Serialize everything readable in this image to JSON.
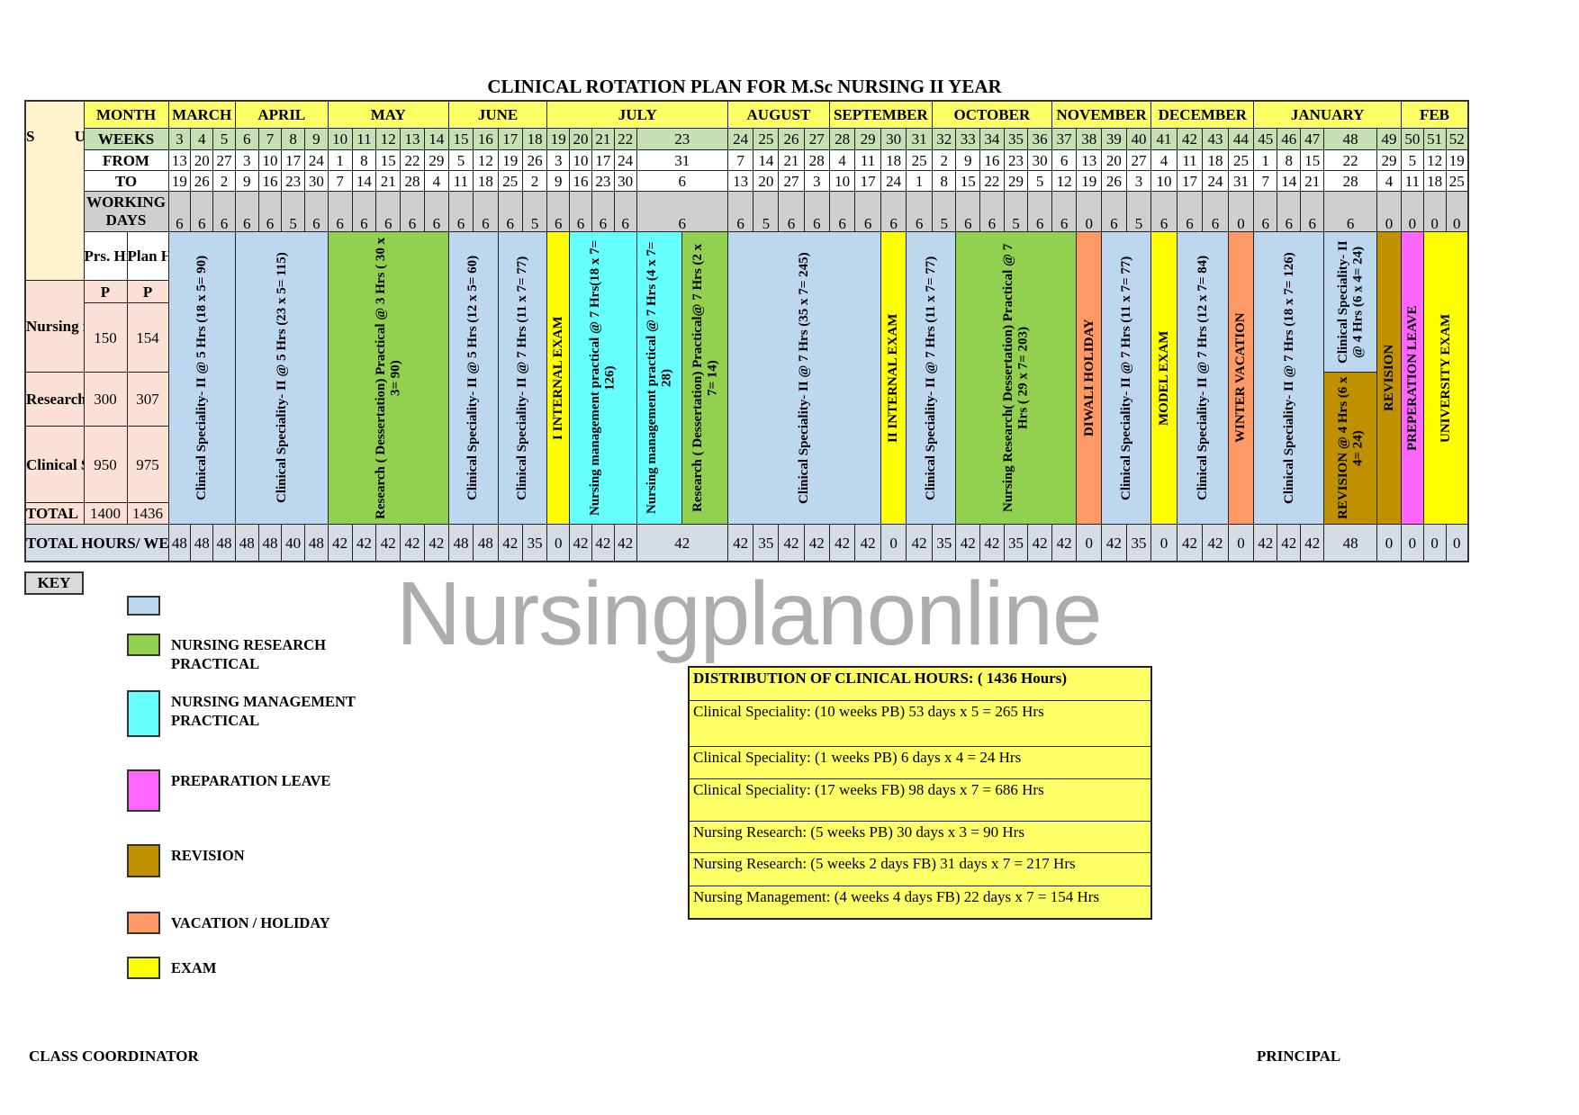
{
  "title": "CLINICAL ROTATION PLAN FOR M.Sc NURSING II YEAR",
  "header_labels": {
    "subject": "S U B J E C T",
    "month": "MONTH",
    "weeks": "WEEKS",
    "from": "FROM",
    "to": "TO",
    "working_days": "WORKING DAYS",
    "prs_hrs": "Prs. Hrs",
    "plan_hrs": "Plan Hrs",
    "prs_unit": "P",
    "plan_unit": "P",
    "total_hours_week": "TOTAL HOURS/ WEEK"
  },
  "months": [
    {
      "label": "MARCH",
      "first_week": 3,
      "last_week": 5
    },
    {
      "label": "APRIL",
      "first_week": 6,
      "last_week": 9
    },
    {
      "label": "MAY",
      "first_week": 10,
      "last_week": 14
    },
    {
      "label": "JUNE",
      "first_week": 15,
      "last_week": 18
    },
    {
      "label": "JULY",
      "first_week": 19,
      "last_week": 23
    },
    {
      "label": "AUGUST",
      "first_week": 24,
      "last_week": 27
    },
    {
      "label": "SEPTEMBER",
      "first_week": 28,
      "last_week": 31
    },
    {
      "label": "OCTOBER",
      "first_week": 32,
      "last_week": 36
    },
    {
      "label": "NOVEMBER",
      "first_week": 37,
      "last_week": 40
    },
    {
      "label": "DECEMBER",
      "first_week": 41,
      "last_week": 44
    },
    {
      "label": "JANUARY",
      "first_week": 45,
      "last_week": 49
    },
    {
      "label": "FEB",
      "first_week": 50,
      "last_week": 52
    }
  ],
  "weeks": [
    {
      "week": "3",
      "from": "13",
      "to": "19",
      "working_days": "6",
      "total_hours": "48"
    },
    {
      "week": "4",
      "from": "20",
      "to": "26",
      "working_days": "6",
      "total_hours": "48"
    },
    {
      "week": "5",
      "from": "27",
      "to": "2",
      "working_days": "6",
      "total_hours": "48"
    },
    {
      "week": "6",
      "from": "3",
      "to": "9",
      "working_days": "6",
      "total_hours": "48"
    },
    {
      "week": "7",
      "from": "10",
      "to": "16",
      "working_days": "6",
      "total_hours": "48"
    },
    {
      "week": "8",
      "from": "17",
      "to": "23",
      "working_days": "5",
      "total_hours": "40"
    },
    {
      "week": "9",
      "from": "24",
      "to": "30",
      "working_days": "6",
      "total_hours": "48"
    },
    {
      "week": "10",
      "from": "1",
      "to": "7",
      "working_days": "6",
      "total_hours": "42"
    },
    {
      "week": "11",
      "from": "8",
      "to": "14",
      "working_days": "6",
      "total_hours": "42"
    },
    {
      "week": "12",
      "from": "15",
      "to": "21",
      "working_days": "6",
      "total_hours": "42"
    },
    {
      "week": "13",
      "from": "22",
      "to": "28",
      "working_days": "6",
      "total_hours": "42"
    },
    {
      "week": "14",
      "from": "29",
      "to": "4",
      "working_days": "6",
      "total_hours": "42"
    },
    {
      "week": "15",
      "from": "5",
      "to": "11",
      "working_days": "6",
      "total_hours": "48"
    },
    {
      "week": "16",
      "from": "12",
      "to": "18",
      "working_days": "6",
      "total_hours": "48"
    },
    {
      "week": "17",
      "from": "19",
      "to": "25",
      "working_days": "6",
      "total_hours": "42"
    },
    {
      "week": "18",
      "from": "26",
      "to": "2",
      "working_days": "5",
      "total_hours": "35"
    },
    {
      "week": "19",
      "from": "3",
      "to": "9",
      "working_days": "6",
      "total_hours": "0"
    },
    {
      "week": "20",
      "from": "10",
      "to": "16",
      "working_days": "6",
      "total_hours": "42"
    },
    {
      "week": "21",
      "from": "17",
      "to": "23",
      "working_days": "6",
      "total_hours": "42"
    },
    {
      "week": "22",
      "from": "24",
      "to": "30",
      "working_days": "6",
      "total_hours": "42"
    },
    {
      "week": "23",
      "from": "31",
      "to": "6",
      "working_days": "6",
      "total_hours": "42"
    },
    {
      "week": "24",
      "from": "7",
      "to": "13",
      "working_days": "6",
      "total_hours": "42"
    },
    {
      "week": "25",
      "from": "14",
      "to": "20",
      "working_days": "5",
      "total_hours": "35"
    },
    {
      "week": "26",
      "from": "21",
      "to": "27",
      "working_days": "6",
      "total_hours": "42"
    },
    {
      "week": "27",
      "from": "28",
      "to": "3",
      "working_days": "6",
      "total_hours": "42"
    },
    {
      "week": "28",
      "from": "4",
      "to": "10",
      "working_days": "6",
      "total_hours": "42"
    },
    {
      "week": "29",
      "from": "11",
      "to": "17",
      "working_days": "6",
      "total_hours": "42"
    },
    {
      "week": "30",
      "from": "18",
      "to": "24",
      "working_days": "6",
      "total_hours": "0"
    },
    {
      "week": "31",
      "from": "25",
      "to": "1",
      "working_days": "6",
      "total_hours": "42"
    },
    {
      "week": "32",
      "from": "2",
      "to": "8",
      "working_days": "5",
      "total_hours": "35"
    },
    {
      "week": "33",
      "from": "9",
      "to": "15",
      "working_days": "6",
      "total_hours": "42"
    },
    {
      "week": "34",
      "from": "16",
      "to": "22",
      "working_days": "6",
      "total_hours": "42"
    },
    {
      "week": "35",
      "from": "23",
      "to": "29",
      "working_days": "5",
      "total_hours": "35"
    },
    {
      "week": "36",
      "from": "30",
      "to": "5",
      "working_days": "6",
      "total_hours": "42"
    },
    {
      "week": "37",
      "from": "6",
      "to": "12",
      "working_days": "6",
      "total_hours": "42"
    },
    {
      "week": "38",
      "from": "13",
      "to": "19",
      "working_days": "0",
      "total_hours": "0"
    },
    {
      "week": "39",
      "from": "20",
      "to": "26",
      "working_days": "6",
      "total_hours": "42"
    },
    {
      "week": "40",
      "from": "27",
      "to": "3",
      "working_days": "5",
      "total_hours": "35"
    },
    {
      "week": "41",
      "from": "4",
      "to": "10",
      "working_days": "6",
      "total_hours": "0"
    },
    {
      "week": "42",
      "from": "11",
      "to": "17",
      "working_days": "6",
      "total_hours": "42"
    },
    {
      "week": "43",
      "from": "18",
      "to": "24",
      "working_days": "6",
      "total_hours": "42"
    },
    {
      "week": "44",
      "from": "25",
      "to": "31",
      "working_days": "0",
      "total_hours": "0"
    },
    {
      "week": "45",
      "from": "1",
      "to": "7",
      "working_days": "6",
      "total_hours": "42"
    },
    {
      "week": "46",
      "from": "8",
      "to": "14",
      "working_days": "6",
      "total_hours": "42"
    },
    {
      "week": "47",
      "from": "15",
      "to": "21",
      "working_days": "6",
      "total_hours": "42"
    },
    {
      "week": "48",
      "from": "22",
      "to": "28",
      "working_days": "6",
      "total_hours": "48"
    },
    {
      "week": "49",
      "from": "29",
      "to": "4",
      "working_days": "0",
      "total_hours": "0"
    },
    {
      "week": "50",
      "from": "5",
      "to": "11",
      "working_days": "0",
      "total_hours": "0"
    },
    {
      "week": "51",
      "from": "12",
      "to": "18",
      "working_days": "0",
      "total_hours": "0"
    },
    {
      "week": "52",
      "from": "19",
      "to": "25",
      "working_days": "0",
      "total_hours": "0"
    }
  ],
  "subjects": [
    {
      "name": "Nursing management",
      "prs": "150",
      "plan": "154"
    },
    {
      "name": "Research ( Dissertation)",
      "prs": "300",
      "plan": "307"
    },
    {
      "name": "Clinical Speciality- II",
      "prs": "950",
      "plan": "975"
    },
    {
      "name": "TOTAL",
      "prs": "1400",
      "plan": "1436"
    }
  ],
  "blocks": [
    {
      "first": 3,
      "last": 5,
      "type": "clinical",
      "text": "Clinical Speciality- II @ 5 Hrs (18 x 5= 90)"
    },
    {
      "first": 6,
      "last": 9,
      "type": "clinical",
      "text": "Clinical Speciality- II @ 5 Hrs (23 x 5= 115)"
    },
    {
      "first": 10,
      "last": 14,
      "type": "research",
      "text": "Research ( Dessertation) Practical @ 3 Hrs ( 30 x 3= 90)"
    },
    {
      "first": 15,
      "last": 16,
      "type": "clinical",
      "text": "Clinical Speciality- II @ 5 Hrs (12 x 5= 60)"
    },
    {
      "first": 17,
      "last": 18,
      "type": "clinical",
      "text": "Clinical Speciality- II @ 7 Hrs (11 x 7= 77)"
    },
    {
      "first": 19,
      "last": 19,
      "type": "exam",
      "text": "I INTERNAL EXAM"
    },
    {
      "first": 20,
      "last": 22,
      "type": "management",
      "text": "Nursing management practical @ 7 Hrs(18 x 7= 126)"
    },
    {
      "first": 23,
      "last": 23,
      "split": [
        {
          "type": "management",
          "text": "Nursing management practical @ 7 Hrs (4 x 7= 28)"
        },
        {
          "type": "research",
          "text": "Research ( Dessertation) Practical@ 7 Hrs (2 x 7= 14)"
        }
      ]
    },
    {
      "first": 24,
      "last": 29,
      "type": "clinical",
      "text": "Clinical Speciality- II @ 7 Hrs (35 x 7= 245)"
    },
    {
      "first": 30,
      "last": 30,
      "type": "exam",
      "text": "II INTERNAL EXAM"
    },
    {
      "first": 31,
      "last": 32,
      "type": "clinical",
      "text": "Clinical Speciality- II @ 7 Hrs (11 x 7= 77)"
    },
    {
      "first": 33,
      "last": 37,
      "type": "research",
      "text": "Nursing Research( Dessertation) Practical @ 7 Hrs ( 29 x 7= 203)"
    },
    {
      "first": 38,
      "last": 38,
      "type": "vacation",
      "text": "DIWALI HOLIDAY"
    },
    {
      "first": 39,
      "last": 40,
      "type": "clinical",
      "text": "Clinical Speciality- II @ 7 Hrs (11 x 7= 77)"
    },
    {
      "first": 41,
      "last": 41,
      "type": "exam",
      "text": "MODEL EXAM"
    },
    {
      "first": 42,
      "last": 43,
      "type": "clinical",
      "text": "Clinical Speciality- II @ 7 Hrs (12 x 7= 84)"
    },
    {
      "first": 44,
      "last": 44,
      "type": "vacation",
      "text": "WINTER VACATION"
    },
    {
      "first": 45,
      "last": 47,
      "type": "clinical",
      "text": "Clinical Speciality- II @ 7 Hrs (18 x 7= 126)"
    },
    {
      "first": 48,
      "last": 48,
      "stack": [
        {
          "type": "clinical",
          "text": "Clinical Speciality- II @ 4 Hrs (6 x 4= 24)"
        },
        {
          "type": "revision",
          "text": "REVISION @ 4 Hrs (6 x 4= 24)"
        }
      ]
    },
    {
      "first": 49,
      "last": 49,
      "type": "revision",
      "text": "REVISION"
    },
    {
      "first": 50,
      "last": 50,
      "type": "preparation",
      "text": "PREPERATION LEAVE"
    },
    {
      "first": 51,
      "last": 52,
      "type": "exam",
      "text": "UNIVERSITY EXAM"
    }
  ],
  "colors": {
    "clinical": "#bdd7ee",
    "research": "#92d050",
    "management": "#66ffff",
    "preparation": "#ff66ff",
    "revision": "#bf9000",
    "vacation": "#ff9966",
    "exam": "#ffff00"
  },
  "key": {
    "label": "KEY",
    "items": [
      {
        "type": "clinical",
        "label": ""
      },
      {
        "type": "research",
        "label": "NURSING RESEARCH PRACTICAL"
      },
      {
        "type": "management",
        "label": "NURSING MANAGEMENT PRACTICAL"
      },
      {
        "type": "preparation",
        "label": "PREPARATION LEAVE"
      },
      {
        "type": "revision",
        "label": "REVISION"
      },
      {
        "type": "vacation",
        "label": "VACATION / HOLIDAY"
      },
      {
        "type": "exam",
        "label": "EXAM"
      }
    ]
  },
  "distribution": {
    "heading": "DISTRIBUTION OF CLINICAL HOURS: ( 1436 Hours)",
    "rows": [
      "Clinical Speciality: (10 weeks PB) 53 days x 5 = 265 Hrs",
      "Clinical Speciality: (1 weeks PB) 6 days x 4 = 24 Hrs",
      "Clinical Speciality: (17 weeks FB) 98 days x 7 = 686 Hrs",
      "Nursing Research: (5 weeks PB) 30 days x 3 = 90 Hrs",
      "Nursing Research: (5 weeks  2 days FB) 31 days x 7 = 217 Hrs",
      "Nursing Management: (4 weeks 4 days FB) 22 days x 7 = 154 Hrs"
    ]
  },
  "watermark": "Nursingplanonline",
  "footer": {
    "left": "CLASS COORDINATOR",
    "right": "PRINCIPAL"
  }
}
